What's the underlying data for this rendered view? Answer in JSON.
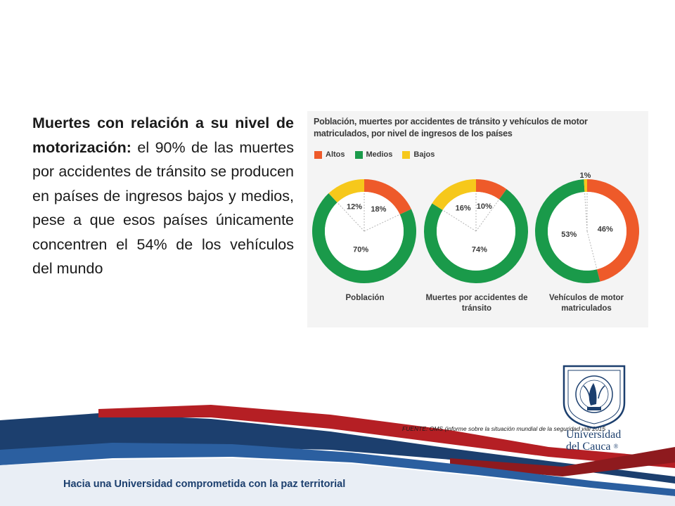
{
  "slide": {
    "text_bold": "Muertes con relación a su nivel de motorización:",
    "text_normal": " el 90% de las muertes por accidentes de tránsito se producen en países de ingresos bajos y medios, pese a que esos países únicamente concentren el 54% de los vehículos del mundo",
    "source": "FUENTE:  OMS (informe sobre la situación mundial de la seguridad vial 2015",
    "footer": "Hacia una Universidad comprometida con la paz territorial"
  },
  "logo": {
    "name_line1": "Universidad",
    "name_line2": "del Cauca",
    "mark": "®",
    "icon": "university-crest-icon"
  },
  "colors": {
    "altos": "#ee5a2a",
    "medios": "#1a9a4a",
    "bajos": "#f6c81b",
    "navy": "#1c3f6e",
    "red": "#b51f24"
  },
  "chart_data": {
    "type": "pie",
    "title": "Población, muertes por accidentes de tránsito y vehículos de motor matriculados, por nivel de ingresos de los países",
    "legend": [
      "Altos",
      "Medios",
      "Bajos"
    ],
    "legend_placement": "top-left",
    "charts": [
      {
        "label": "Población",
        "slices": [
          {
            "name": "Altos",
            "value": 18
          },
          {
            "name": "Medios",
            "value": 70
          },
          {
            "name": "Bajos",
            "value": 12
          }
        ]
      },
      {
        "label": "Muertes por accidentes de tránsito",
        "slices": [
          {
            "name": "Altos",
            "value": 10
          },
          {
            "name": "Medios",
            "value": 74
          },
          {
            "name": "Bajos",
            "value": 16
          }
        ]
      },
      {
        "label": "Vehículos de motor matriculados",
        "slices": [
          {
            "name": "Altos",
            "value": 46
          },
          {
            "name": "Medios",
            "value": 53
          },
          {
            "name": "Bajos",
            "value": 1
          }
        ]
      }
    ]
  }
}
